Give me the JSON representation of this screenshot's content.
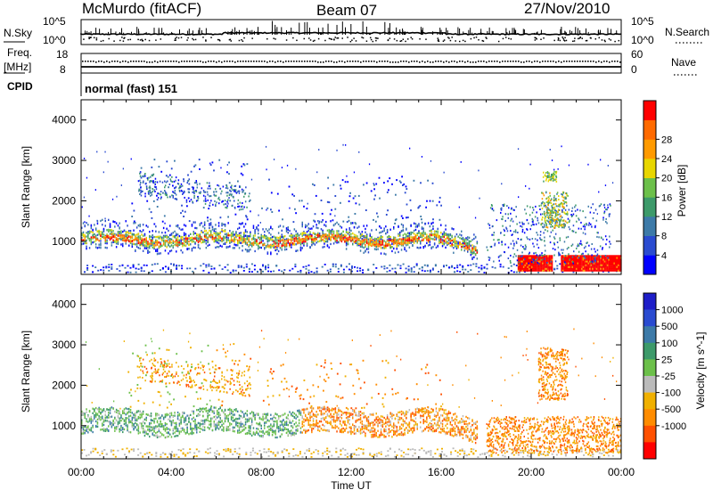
{
  "header": {
    "title": "McMurdo (fitACF)",
    "beam": "Beam 07",
    "date": "27/Nov/2010"
  },
  "noise_panel": {
    "left_label": "N.Sky",
    "left_ticks": [
      "10^5",
      "10^0"
    ],
    "right_label": "N.Search",
    "right_ticks": [
      "10^5",
      "10^0"
    ]
  },
  "freq_panel": {
    "left_label_1": "Freq.",
    "left_label_2": "[MHz]",
    "left_ticks": [
      "18",
      "8"
    ],
    "right_label": "Nave",
    "right_ticks": [
      "60",
      "0"
    ]
  },
  "cpid": {
    "label": "CPID",
    "value": "normal (fast) 151"
  },
  "colors": {
    "power_scale": [
      "#0000ff",
      "#2a4bd0",
      "#3d7aa8",
      "#3d9a6a",
      "#6cc04a",
      "#e8d600",
      "#ff9a00",
      "#ff6a00",
      "#ff0000"
    ],
    "velocity_scale": [
      "#1e1ec8",
      "#2a4bd0",
      "#3d7aa8",
      "#3d9a6a",
      "#6cc04a",
      "#bbbbbb",
      "#f0b000",
      "#ff8c00",
      "#ff5000",
      "#ff0000"
    ]
  },
  "chart_data": [
    {
      "type": "heatmap",
      "title": "Power",
      "ylabel": "Slant Range [km]",
      "xlabel": "Time UT",
      "ylim": [
        180,
        4500
      ],
      "yticks": [
        "1000",
        "2000",
        "3000",
        "4000"
      ],
      "xticks": [
        "00:00",
        "04:00",
        "08:00",
        "12:00",
        "16:00",
        "20:00",
        "00:00"
      ],
      "colorbar_label": "Power [dB]",
      "colorbar_ticks": [
        "4",
        "8",
        "12",
        "16",
        "20",
        "24",
        "28"
      ],
      "scatter_bands": [
        {
          "t_start": 0.0,
          "t_end": 17.5,
          "range_center": 1000,
          "range_width": 300,
          "level": "20-28"
        },
        {
          "t_start": 0.0,
          "t_end": 17.5,
          "range_center": 1250,
          "range_width": 600,
          "level": "4-12"
        },
        {
          "t_start": 19.5,
          "t_end": 24.0,
          "range_center": 450,
          "range_width": 250,
          "level": "28"
        },
        {
          "t_start": 2.0,
          "t_end": 7.5,
          "range_center": 2500,
          "range_width": 600,
          "level": "4-8"
        },
        {
          "t_start": 20.5,
          "t_end": 21.5,
          "range_center": 1500,
          "range_width": 300,
          "level": "8-20"
        }
      ]
    },
    {
      "type": "heatmap",
      "title": "Velocity",
      "ylabel": "Slant Range [km]",
      "xlabel": "Time UT",
      "ylim": [
        180,
        4500
      ],
      "yticks": [
        "1000",
        "2000",
        "3000",
        "4000"
      ],
      "xticks": [
        "00:00",
        "04:00",
        "08:00",
        "12:00",
        "16:00",
        "20:00",
        "00:00"
      ],
      "colorbar_label": "Velocity [m s^-1]",
      "colorbar_ticks": [
        "1000",
        "500",
        "100",
        "25",
        "-25",
        "-100",
        "-500",
        "-1000"
      ],
      "scatter_bands": [
        {
          "t_start": 0.0,
          "t_end": 10.0,
          "range_center": 1050,
          "range_width": 400,
          "level": "100 to 500"
        },
        {
          "t_start": 10.0,
          "t_end": 17.5,
          "range_center": 900,
          "range_width": 450,
          "level": "-100 to -500"
        },
        {
          "t_start": 19.0,
          "t_end": 24.0,
          "range_center": 600,
          "range_width": 350,
          "level": "-100 to -500"
        },
        {
          "t_start": 20.5,
          "t_end": 21.5,
          "range_center": 2300,
          "range_width": 500,
          "level": "-100"
        }
      ]
    }
  ]
}
